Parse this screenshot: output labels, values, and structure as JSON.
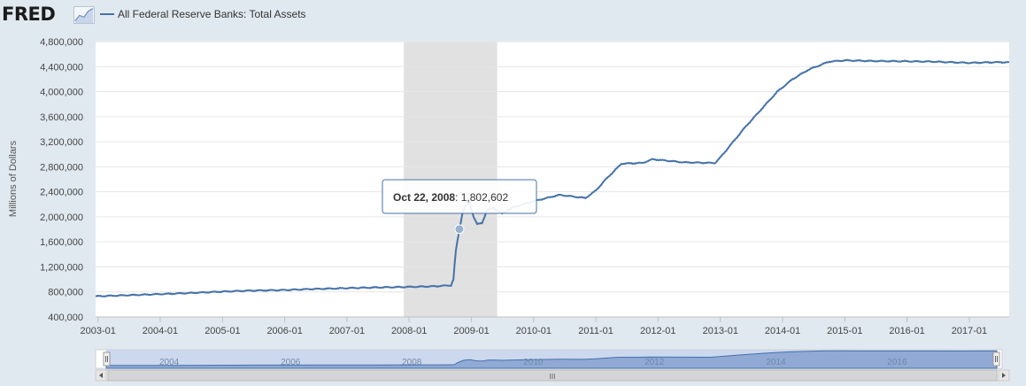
{
  "header": {
    "logo_text": "FRED",
    "logo_graph_icon": "rising-line-chart-icon"
  },
  "colors": {
    "background": "#e1e9f0",
    "plot_background": "#ffffff",
    "series": "#4572a7",
    "recession": "#e1e1e1",
    "grid": "#e6e6e6",
    "navigator_fill": "#a6bce0"
  },
  "tooltip": {
    "date": "Oct 22, 2008",
    "value": "1,802,602",
    "x": "2008-10-22",
    "y": 1802602
  },
  "navigator": {
    "labels": [
      "2004",
      "2006",
      "2008",
      "2010",
      "2012",
      "2014",
      "2016"
    ],
    "scroll_left_icon": "arrow-left-icon",
    "scroll_right_icon": "arrow-right-icon",
    "scroll_grip": "III"
  },
  "chart_data": {
    "type": "line",
    "ylabel": "Millions of Dollars",
    "ylim": [
      400000,
      4800000
    ],
    "xlim": [
      "2002-12-18",
      "2017-08-23"
    ],
    "y_ticks": [
      "400,000",
      "800,000",
      "1,200,000",
      "1,600,000",
      "2,000,000",
      "2,400,000",
      "2,800,000",
      "3,200,000",
      "3,600,000",
      "4,000,000",
      "4,400,000",
      "4,800,000"
    ],
    "x_ticks": [
      "2003-01",
      "2004-01",
      "2005-01",
      "2006-01",
      "2007-01",
      "2008-01",
      "2009-01",
      "2010-01",
      "2011-01",
      "2012-01",
      "2013-01",
      "2014-01",
      "2015-01",
      "2016-01",
      "2017-01"
    ],
    "grid": true,
    "recession": {
      "start": "2007-12-01",
      "end": "2009-06-01"
    },
    "series": [
      {
        "name": "All Federal Reserve Banks: Total Assets",
        "points": [
          [
            "2002-12-18",
            730000
          ],
          [
            "2003-06-01",
            745000
          ],
          [
            "2004-01-01",
            765000
          ],
          [
            "2004-06-01",
            780000
          ],
          [
            "2005-01-01",
            805000
          ],
          [
            "2005-06-01",
            820000
          ],
          [
            "2006-01-01",
            830000
          ],
          [
            "2006-06-01",
            845000
          ],
          [
            "2007-01-01",
            860000
          ],
          [
            "2007-06-01",
            870000
          ],
          [
            "2008-01-01",
            880000
          ],
          [
            "2008-06-01",
            890000
          ],
          [
            "2008-09-03",
            905000
          ],
          [
            "2008-09-17",
            1000000
          ],
          [
            "2008-10-01",
            1450000
          ],
          [
            "2008-10-22",
            1802602
          ],
          [
            "2008-11-12",
            2100000
          ],
          [
            "2008-12-17",
            2250000
          ],
          [
            "2009-01-14",
            2000000
          ],
          [
            "2009-02-04",
            1880000
          ],
          [
            "2009-03-04",
            1900000
          ],
          [
            "2009-04-01",
            2100000
          ],
          [
            "2009-05-06",
            2150000
          ],
          [
            "2009-07-01",
            2050000
          ],
          [
            "2009-09-01",
            2150000
          ],
          [
            "2010-01-01",
            2250000
          ],
          [
            "2010-06-01",
            2350000
          ],
          [
            "2010-11-01",
            2300000
          ],
          [
            "2011-01-01",
            2420000
          ],
          [
            "2011-03-01",
            2600000
          ],
          [
            "2011-06-01",
            2850000
          ],
          [
            "2011-10-01",
            2860000
          ],
          [
            "2011-12-01",
            2920000
          ],
          [
            "2012-06-01",
            2870000
          ],
          [
            "2012-12-01",
            2860000
          ],
          [
            "2013-01-01",
            2950000
          ],
          [
            "2013-06-01",
            3450000
          ],
          [
            "2013-12-01",
            4000000
          ],
          [
            "2014-03-01",
            4200000
          ],
          [
            "2014-06-01",
            4350000
          ],
          [
            "2014-10-01",
            4480000
          ],
          [
            "2015-01-01",
            4500000
          ],
          [
            "2015-06-01",
            4490000
          ],
          [
            "2016-01-01",
            4485000
          ],
          [
            "2016-06-01",
            4480000
          ],
          [
            "2017-01-01",
            4460000
          ],
          [
            "2017-06-01",
            4470000
          ],
          [
            "2017-08-23",
            4470000
          ]
        ]
      }
    ]
  }
}
